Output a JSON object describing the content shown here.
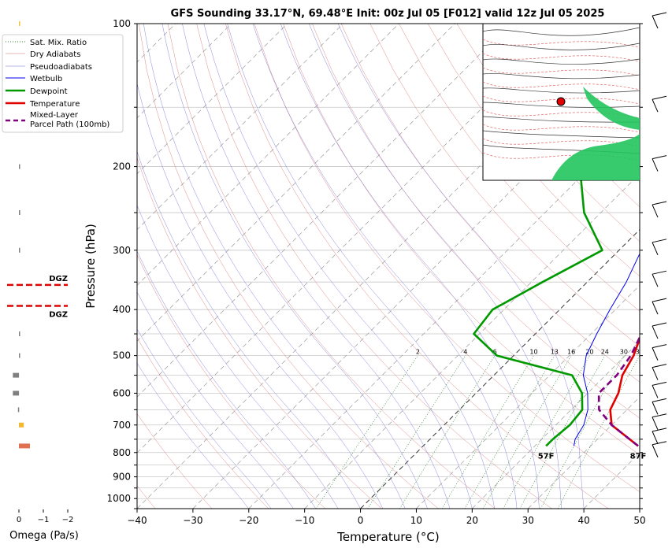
{
  "title": "GFS Sounding 33.17°N, 69.48°E Init: 00z Jul 05 [F012] valid 12z Jul 05 2025",
  "chart_data": {
    "type": "line",
    "xlabel": "Temperature (°C)",
    "ylabel": "Pressure (hPa)",
    "xlim": [
      -40,
      50
    ],
    "ylim": [
      1050,
      100
    ],
    "yscale": "log",
    "skew": true,
    "x_ticks": [
      "−40",
      "−30",
      "−20",
      "−10",
      "0",
      "10",
      "20",
      "30",
      "40",
      "50"
    ],
    "y_ticks": [
      "100",
      "200",
      "300",
      "400",
      "500",
      "600",
      "700",
      "800",
      "900",
      "1000"
    ],
    "legend": {
      "position": "top-left",
      "entries": [
        "Sat. Mix. Ratio",
        "Dry Adiabats",
        "Pseudoadiabats",
        "Wetbulb",
        "Dewpoint",
        "Temperature",
        "Mixed-Layer\nParcel Path (100mb)"
      ]
    },
    "series": [
      {
        "name": "Temperature",
        "color": "#e00000",
        "width": 2.6,
        "points": [
          [
            775,
            38.5
          ],
          [
            700,
            30
          ],
          [
            650,
            27
          ],
          [
            600,
            25.5
          ],
          [
            550,
            23
          ],
          [
            500,
            21.5
          ],
          [
            450,
            19
          ],
          [
            400,
            15
          ],
          [
            350,
            11
          ],
          [
            300,
            6
          ],
          [
            250,
            1
          ],
          [
            200,
            -6
          ],
          [
            175,
            -9
          ],
          [
            150,
            -10
          ],
          [
            125,
            -12
          ],
          [
            100,
            -14
          ]
        ]
      },
      {
        "name": "Dewpoint",
        "color": "#009900",
        "width": 2.6,
        "points": [
          [
            775,
            22
          ],
          [
            750,
            22
          ],
          [
            700,
            22.5
          ],
          [
            650,
            22
          ],
          [
            600,
            19
          ],
          [
            550,
            14
          ],
          [
            500,
            -3
          ],
          [
            450,
            -11
          ],
          [
            400,
            -12
          ],
          [
            350,
            -8
          ],
          [
            300,
            -3
          ],
          [
            250,
            -13
          ],
          [
            200,
            -22
          ],
          [
            150,
            -10
          ],
          [
            100,
            -11
          ]
        ]
      },
      {
        "name": "Wetbulb",
        "color": "#0000ee",
        "width": 1,
        "points": [
          [
            775,
            27
          ],
          [
            750,
            26
          ],
          [
            700,
            25
          ],
          [
            650,
            23
          ],
          [
            600,
            20
          ],
          [
            550,
            16
          ],
          [
            500,
            13
          ],
          [
            450,
            11
          ],
          [
            400,
            9
          ],
          [
            350,
            7
          ],
          [
            300,
            4
          ],
          [
            250,
            -2
          ],
          [
            200,
            -7
          ],
          [
            175,
            -9
          ]
        ]
      },
      {
        "name": "Mixed-Layer Parcel Path (100mb)",
        "color": "#800080",
        "width": 2.6,
        "dash": "8,5",
        "points": [
          [
            775,
            38.5
          ],
          [
            700,
            30
          ],
          [
            650,
            25
          ],
          [
            600,
            22
          ],
          [
            550,
            22
          ],
          [
            500,
            21
          ],
          [
            450,
            19
          ],
          [
            400,
            17.5
          ],
          [
            350,
            14
          ],
          [
            300,
            9
          ],
          [
            250,
            3
          ],
          [
            200,
            -4.5
          ],
          [
            150,
            -12
          ],
          [
            100,
            -17
          ]
        ]
      }
    ],
    "labels": {
      "surface_dewpoint": "57F",
      "surface_temperature": "87F",
      "mixing_ratios": [
        "2",
        "4",
        "6",
        "10",
        "13",
        "16",
        "20",
        "24",
        "30",
        "36"
      ]
    },
    "omega": {
      "xlabel": "Omega (Pa/s)",
      "ticks": [
        "0",
        "−1",
        "−2"
      ],
      "dgz_label": "DGZ",
      "bars": [
        {
          "p": 100,
          "v": -0.02,
          "color": "#f4c430"
        },
        {
          "p": 200,
          "v": -0.02,
          "color": "#808080"
        },
        {
          "p": 250,
          "v": -0.05,
          "color": "#808080"
        },
        {
          "p": 300,
          "v": -0.02,
          "color": "#808080"
        },
        {
          "p": 450,
          "v": -0.02,
          "color": "#808080"
        },
        {
          "p": 500,
          "v": -0.02,
          "color": "#808080"
        },
        {
          "p": 550,
          "v": 0.25,
          "color": "#808080"
        },
        {
          "p": 600,
          "v": 0.25,
          "color": "#808080"
        },
        {
          "p": 650,
          "v": 0.04,
          "color": "#808080"
        },
        {
          "p": 700,
          "v": -0.2,
          "color": "#f4b731"
        },
        {
          "p": 775,
          "v": -0.45,
          "color": "#e07050"
        }
      ],
      "dgz_pressures": [
        355,
        393
      ]
    },
    "wind_barbs_pressures": [
      100,
      150,
      200,
      250,
      300,
      350,
      400,
      450,
      500,
      550,
      600,
      650,
      700,
      750,
      800
    ]
  }
}
